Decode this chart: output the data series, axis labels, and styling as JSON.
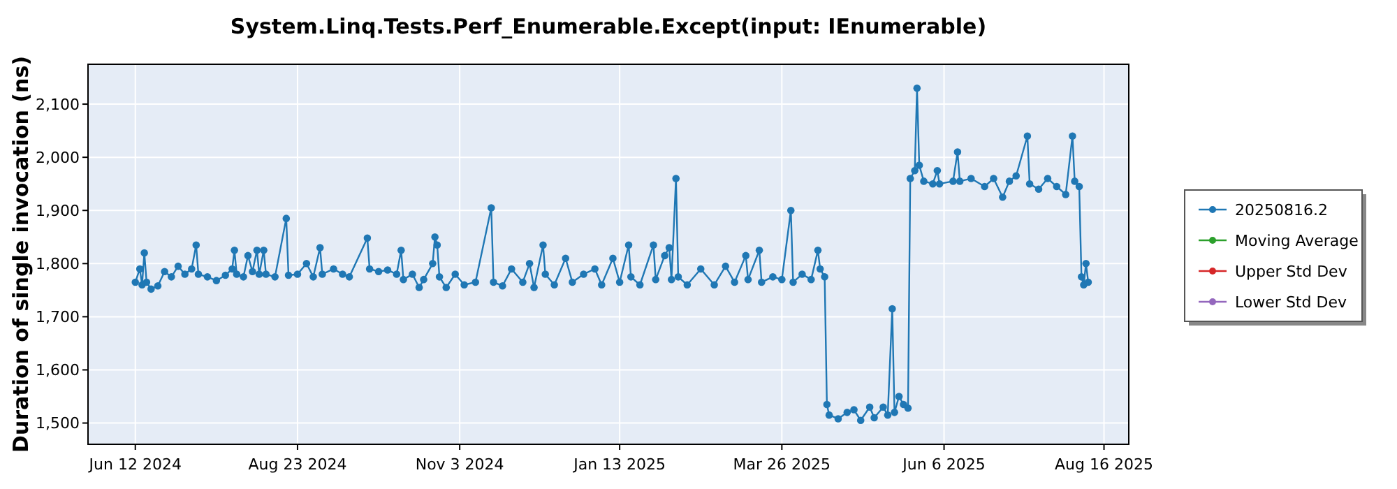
{
  "chart_data": {
    "type": "line",
    "title": "System.Linq.Tests.Perf_Enumerable.Except(input: IEnumerable)",
    "ylabel": "Duration of single invocation (ns)",
    "xlim": [
      "2024-05-22",
      "2025-08-27"
    ],
    "xticks": [
      {
        "value": "2024-06-12",
        "label": "Jun 12 2024"
      },
      {
        "value": "2024-08-23",
        "label": "Aug 23 2024"
      },
      {
        "value": "2024-11-03",
        "label": "Nov 3 2024"
      },
      {
        "value": "2025-01-13",
        "label": "Jan 13 2025"
      },
      {
        "value": "2025-03-26",
        "label": "Mar 26 2025"
      },
      {
        "value": "2025-06-06",
        "label": "Jun 6 2025"
      },
      {
        "value": "2025-08-16",
        "label": "Aug 16 2025"
      }
    ],
    "ylim": [
      1460,
      2175
    ],
    "yticks": [
      {
        "value": 1500,
        "label": "1,500"
      },
      {
        "value": 1600,
        "label": "1,600"
      },
      {
        "value": 1700,
        "label": "1,700"
      },
      {
        "value": 1800,
        "label": "1,800"
      },
      {
        "value": 1900,
        "label": "1,900"
      },
      {
        "value": 2000,
        "label": "2,000"
      },
      {
        "value": 2100,
        "label": "2,100"
      }
    ],
    "grid": true,
    "legend": "right",
    "marker": "circle",
    "line_style": "solid",
    "series": [
      {
        "name": "20250816.2",
        "color": "#1f77b4",
        "x": [
          "2024-06-12",
          "2024-06-14",
          "2024-06-15",
          "2024-06-16",
          "2024-06-17",
          "2024-06-19",
          "2024-06-22",
          "2024-06-25",
          "2024-06-28",
          "2024-07-01",
          "2024-07-04",
          "2024-07-07",
          "2024-07-09",
          "2024-07-10",
          "2024-07-14",
          "2024-07-18",
          "2024-07-22",
          "2024-07-25",
          "2024-07-26",
          "2024-07-27",
          "2024-07-30",
          "2024-08-01",
          "2024-08-03",
          "2024-08-05",
          "2024-08-06",
          "2024-08-08",
          "2024-08-09",
          "2024-08-13",
          "2024-08-18",
          "2024-08-19",
          "2024-08-23",
          "2024-08-27",
          "2024-08-30",
          "2024-09-02",
          "2024-09-03",
          "2024-09-08",
          "2024-09-12",
          "2024-09-15",
          "2024-09-23",
          "2024-09-24",
          "2024-09-28",
          "2024-10-02",
          "2024-10-06",
          "2024-10-08",
          "2024-10-09",
          "2024-10-13",
          "2024-10-16",
          "2024-10-18",
          "2024-10-22",
          "2024-10-23",
          "2024-10-24",
          "2024-10-25",
          "2024-10-28",
          "2024-11-01",
          "2024-11-05",
          "2024-11-10",
          "2024-11-17",
          "2024-11-18",
          "2024-11-22",
          "2024-11-26",
          "2024-12-01",
          "2024-12-04",
          "2024-12-06",
          "2024-12-10",
          "2024-12-11",
          "2024-12-15",
          "2024-12-20",
          "2024-12-23",
          "2024-12-28",
          "2025-01-02",
          "2025-01-05",
          "2025-01-10",
          "2025-01-13",
          "2025-01-17",
          "2025-01-18",
          "2025-01-22",
          "2025-01-28",
          "2025-01-29",
          "2025-02-02",
          "2025-02-04",
          "2025-02-05",
          "2025-02-07",
          "2025-02-08",
          "2025-02-12",
          "2025-02-18",
          "2025-02-24",
          "2025-03-01",
          "2025-03-05",
          "2025-03-10",
          "2025-03-11",
          "2025-03-16",
          "2025-03-17",
          "2025-03-22",
          "2025-03-26",
          "2025-03-30",
          "2025-03-31",
          "2025-04-04",
          "2025-04-08",
          "2025-04-11",
          "2025-04-12",
          "2025-04-14",
          "2025-04-15",
          "2025-04-16",
          "2025-04-20",
          "2025-04-24",
          "2025-04-27",
          "2025-04-30",
          "2025-05-04",
          "2025-05-06",
          "2025-05-10",
          "2025-05-12",
          "2025-05-14",
          "2025-05-15",
          "2025-05-17",
          "2025-05-19",
          "2025-05-21",
          "2025-05-22",
          "2025-05-24",
          "2025-05-25",
          "2025-05-26",
          "2025-05-28",
          "2025-06-01",
          "2025-06-03",
          "2025-06-04",
          "2025-06-10",
          "2025-06-12",
          "2025-06-13",
          "2025-06-18",
          "2025-06-24",
          "2025-06-28",
          "2025-07-02",
          "2025-07-05",
          "2025-07-08",
          "2025-07-13",
          "2025-07-14",
          "2025-07-18",
          "2025-07-22",
          "2025-07-26",
          "2025-07-30",
          "2025-08-02",
          "2025-08-03",
          "2025-08-05",
          "2025-08-06",
          "2025-08-07",
          "2025-08-08",
          "2025-08-09"
        ],
        "values": [
          1765,
          1790,
          1760,
          1820,
          1765,
          1752,
          1758,
          1785,
          1775,
          1795,
          1780,
          1790,
          1835,
          1780,
          1775,
          1768,
          1778,
          1790,
          1825,
          1780,
          1775,
          1815,
          1785,
          1825,
          1780,
          1825,
          1780,
          1775,
          1885,
          1778,
          1780,
          1800,
          1775,
          1830,
          1780,
          1790,
          1780,
          1775,
          1848,
          1790,
          1785,
          1788,
          1780,
          1825,
          1770,
          1780,
          1755,
          1770,
          1800,
          1850,
          1835,
          1775,
          1755,
          1780,
          1760,
          1765,
          1905,
          1765,
          1758,
          1790,
          1765,
          1800,
          1755,
          1835,
          1780,
          1760,
          1810,
          1765,
          1780,
          1790,
          1760,
          1810,
          1765,
          1835,
          1775,
          1760,
          1835,
          1770,
          1815,
          1830,
          1770,
          1960,
          1775,
          1760,
          1790,
          1760,
          1795,
          1765,
          1815,
          1770,
          1825,
          1765,
          1775,
          1770,
          1900,
          1765,
          1780,
          1770,
          1825,
          1790,
          1775,
          1535,
          1515,
          1508,
          1520,
          1525,
          1505,
          1530,
          1510,
          1530,
          1515,
          1715,
          1520,
          1550,
          1535,
          1528,
          1960,
          1975,
          2130,
          1985,
          1955,
          1950,
          1975,
          1950,
          1955,
          2010,
          1955,
          1960,
          1945,
          1960,
          1925,
          1955,
          1965,
          2040,
          1950,
          1940,
          1960,
          1945,
          1930,
          2040,
          1955,
          1945,
          1775,
          1760,
          1800,
          1765
        ]
      },
      {
        "name": "Moving Average",
        "color": "#2ca02c"
      },
      {
        "name": "Upper Std Dev",
        "color": "#d62728"
      },
      {
        "name": "Lower Std Dev",
        "color": "#9467bd"
      }
    ]
  }
}
